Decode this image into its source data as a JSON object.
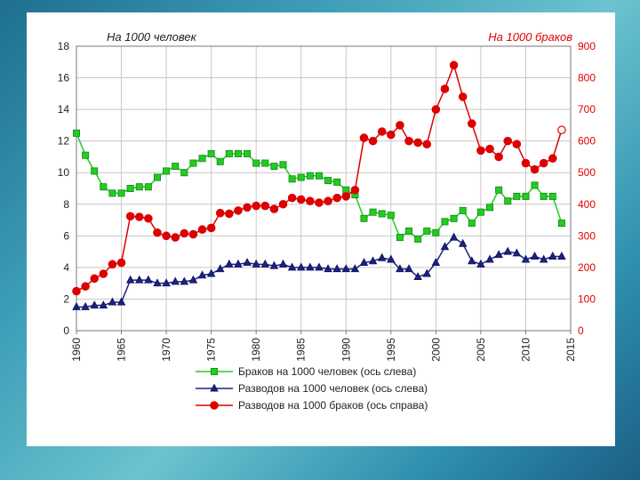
{
  "chart_data": {
    "type": "line",
    "left_axis_title": "На 1000 человек",
    "right_axis_title": "На 1000 браков",
    "x": [
      1960,
      1961,
      1962,
      1963,
      1964,
      1965,
      1966,
      1967,
      1968,
      1969,
      1970,
      1971,
      1972,
      1973,
      1974,
      1975,
      1976,
      1977,
      1978,
      1979,
      1980,
      1981,
      1982,
      1983,
      1984,
      1985,
      1986,
      1987,
      1988,
      1989,
      1990,
      1991,
      1992,
      1993,
      1994,
      1995,
      1996,
      1997,
      1998,
      1999,
      2000,
      2001,
      2002,
      2003,
      2004,
      2005,
      2006,
      2007,
      2008,
      2009,
      2010,
      2011,
      2012,
      2013,
      2014
    ],
    "x_ticks": [
      "1960",
      "1965",
      "1970",
      "1975",
      "1980",
      "1985",
      "1990",
      "1995",
      "2000",
      "2005",
      "2010",
      "2015"
    ],
    "xlim": [
      1960,
      2015
    ],
    "ylim_left": [
      0,
      18
    ],
    "yticks_left": [
      "0",
      "2",
      "4",
      "6",
      "8",
      "10",
      "12",
      "14",
      "16",
      "18"
    ],
    "ylim_right": [
      0,
      900
    ],
    "yticks_right": [
      "0",
      "100",
      "200",
      "300",
      "400",
      "500",
      "600",
      "700",
      "800",
      "900"
    ],
    "grid": true,
    "legend_placement": "bottom",
    "series": [
      {
        "name": "Браков на 1000 человек (ось слева)",
        "axis": "left",
        "color": "#22cc22",
        "marker": "square",
        "values": [
          12.5,
          11.1,
          10.1,
          9.1,
          8.7,
          8.7,
          9.0,
          9.1,
          9.1,
          9.7,
          10.1,
          10.4,
          10.0,
          10.6,
          10.9,
          11.2,
          10.7,
          11.2,
          11.2,
          11.2,
          10.6,
          10.6,
          10.4,
          10.5,
          9.6,
          9.7,
          9.8,
          9.8,
          9.5,
          9.4,
          8.9,
          8.6,
          7.1,
          7.5,
          7.4,
          7.3,
          5.9,
          6.3,
          5.8,
          6.3,
          6.2,
          6.9,
          7.1,
          7.6,
          6.8,
          7.5,
          7.8,
          8.9,
          8.2,
          8.5,
          8.5,
          9.2,
          8.5,
          8.5,
          6.8
        ],
        "hollow_last": false
      },
      {
        "name": "Разводов на 1000 человек (ось слева)",
        "axis": "left",
        "color": "#1a237e",
        "marker": "triangle",
        "values": [
          1.5,
          1.5,
          1.6,
          1.6,
          1.8,
          1.8,
          3.2,
          3.2,
          3.2,
          3.0,
          3.0,
          3.1,
          3.1,
          3.2,
          3.5,
          3.6,
          3.9,
          4.2,
          4.2,
          4.3,
          4.2,
          4.2,
          4.1,
          4.2,
          4.0,
          4.0,
          4.0,
          4.0,
          3.9,
          3.9,
          3.9,
          3.9,
          4.3,
          4.4,
          4.6,
          4.5,
          3.9,
          3.9,
          3.4,
          3.6,
          4.3,
          5.3,
          5.9,
          5.5,
          4.4,
          4.2,
          4.5,
          4.8,
          5.0,
          4.9,
          4.5,
          4.7,
          4.5,
          4.7,
          4.7
        ],
        "hollow_last": false
      },
      {
        "name": "Разводов на 1000 браков (ось справа)",
        "axis": "right",
        "color": "#dd0000",
        "marker": "circle",
        "values": [
          125,
          140,
          165,
          180,
          210,
          215,
          362,
          360,
          355,
          310,
          300,
          295,
          308,
          305,
          320,
          325,
          372,
          370,
          380,
          390,
          395,
          395,
          385,
          400,
          420,
          415,
          410,
          405,
          410,
          420,
          425,
          445,
          610,
          600,
          630,
          620,
          650,
          600,
          595,
          590,
          700,
          765,
          840,
          740,
          655,
          570,
          575,
          550,
          600,
          590,
          530,
          510,
          530,
          545,
          635
        ],
        "hollow_last": true
      }
    ]
  }
}
